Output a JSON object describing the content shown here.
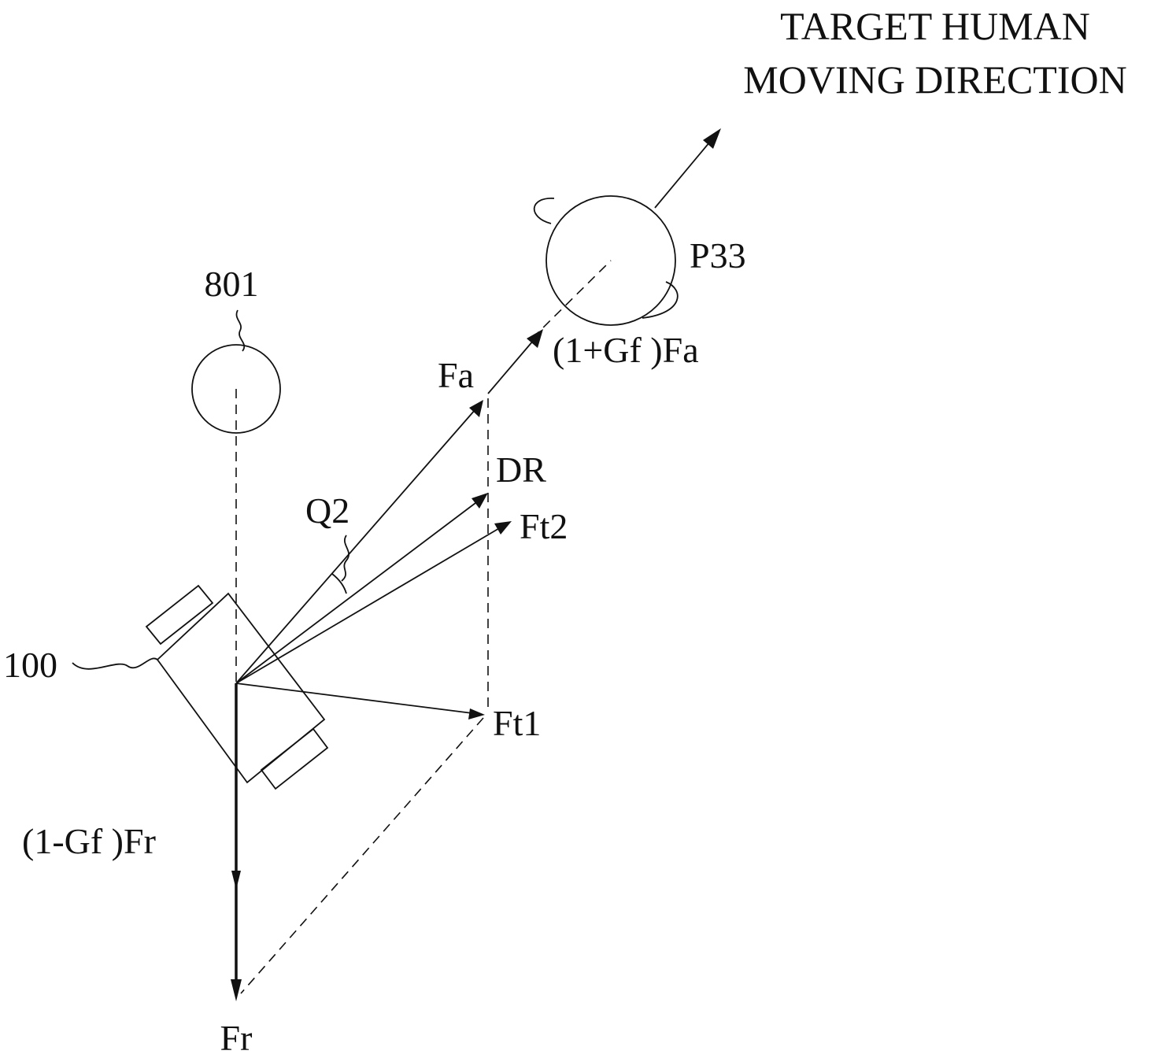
{
  "title": {
    "line1": "TARGET HUMAN",
    "line2": "MOVING DIRECTION"
  },
  "labels": {
    "person_ref": "P33",
    "obstacle_ref": "801",
    "robot_ref": "100",
    "angle": "Q2",
    "attractive_force": "Fa",
    "scaled_attractive_force": "(1+Gf )Fa",
    "direction": "DR",
    "resultant_force_2": "Ft2",
    "resultant_force_1": "Ft1",
    "scaled_repulsive_force": "(1-Gf )Fr",
    "repulsive_force": "Fr"
  }
}
